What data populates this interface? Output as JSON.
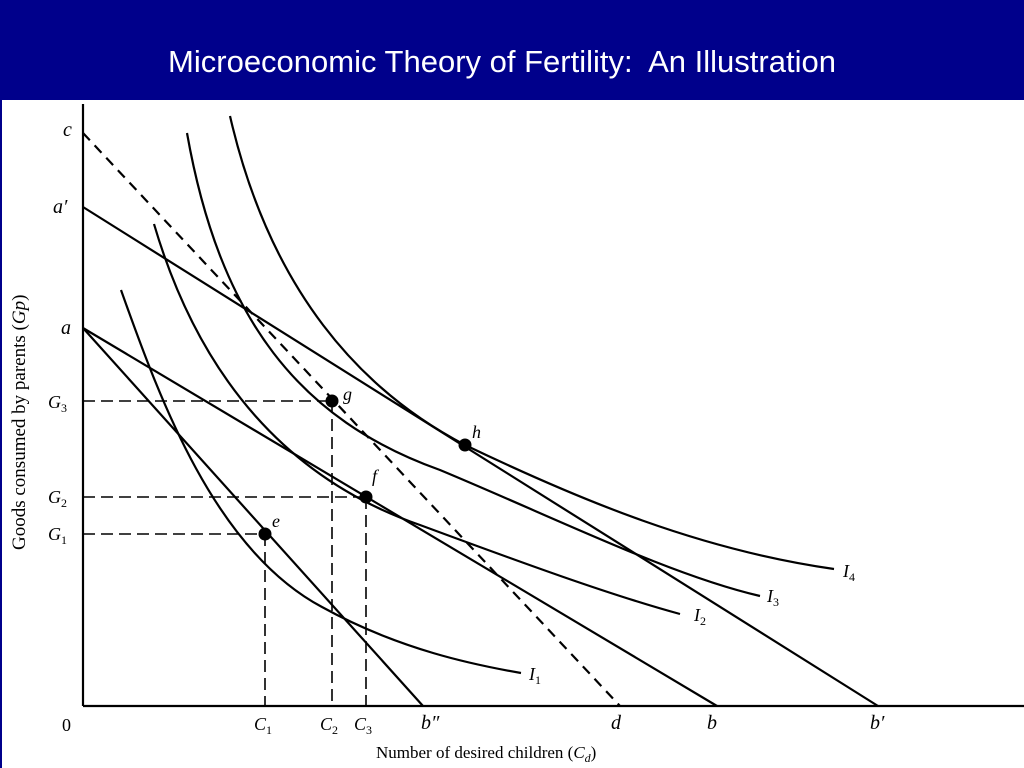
{
  "slide": {
    "title": "Microeconomic Theory of Fertility:  An Illustration",
    "colors": {
      "title_bar": "#00008b",
      "title_text": "#ffffff",
      "ink": "#000000"
    }
  },
  "diagram": {
    "y_axis_label": {
      "prefix": "Goods consumed by parents (",
      "symbol": "Gp",
      "suffix": ")"
    },
    "x_axis_label": {
      "prefix": "Number of desired children (",
      "symbol": "C",
      "sub": "d",
      "suffix": ")"
    },
    "origin_label": "0",
    "y_intercepts": {
      "c": "c",
      "a_prime": "a′",
      "a": "a"
    },
    "y_ticks": [
      {
        "base": "G",
        "sub": "3"
      },
      {
        "base": "G",
        "sub": "2"
      },
      {
        "base": "G",
        "sub": "1"
      }
    ],
    "x_ticks": [
      {
        "base": "C",
        "sub": "1"
      },
      {
        "base": "C",
        "sub": "2"
      },
      {
        "base": "C",
        "sub": "3"
      }
    ],
    "x_intercepts": {
      "b_double_prime": "b″",
      "d": "d",
      "b": "b",
      "b_prime": "b′"
    },
    "points": {
      "e": "e",
      "f": "f",
      "g": "g",
      "h": "h"
    },
    "curves": [
      {
        "base": "I",
        "sub": "1"
      },
      {
        "base": "I",
        "sub": "2"
      },
      {
        "base": "I",
        "sub": "3"
      },
      {
        "base": "I",
        "sub": "4"
      }
    ]
  }
}
